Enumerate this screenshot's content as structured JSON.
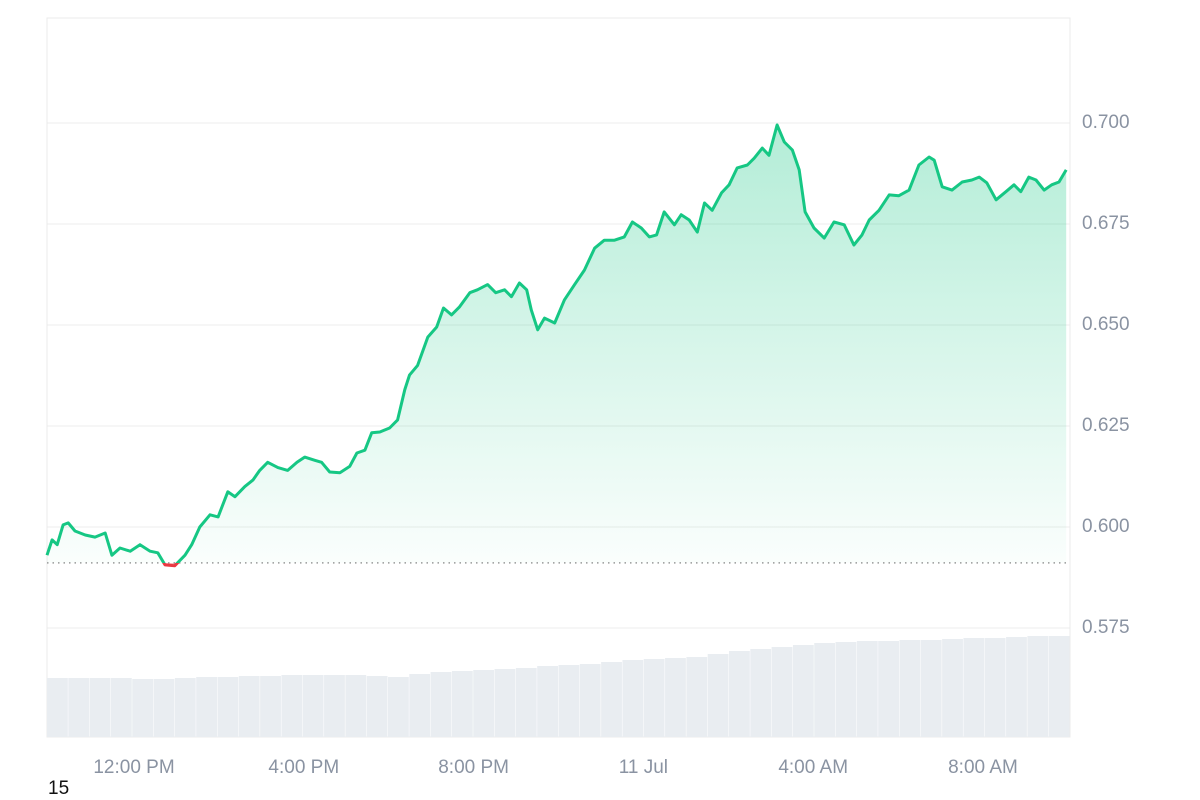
{
  "chart_data": {
    "type": "line",
    "x": [
      9.95,
      10.07,
      10.19,
      10.33,
      10.45,
      10.61,
      10.85,
      11.08,
      11.32,
      11.48,
      11.67,
      11.91,
      12.14,
      12.38,
      12.56,
      12.73,
      12.96,
      13.2,
      13.36,
      13.55,
      13.79,
      13.98,
      14.21,
      14.38,
      14.61,
      14.8,
      14.96,
      15.15,
      15.39,
      15.62,
      15.84,
      16.02,
      16.26,
      16.42,
      16.61,
      16.85,
      17.08,
      17.25,
      17.44,
      17.6,
      17.79,
      18.02,
      18.21,
      18.38,
      18.49,
      18.68,
      18.92,
      19.13,
      19.29,
      19.48,
      19.67,
      19.91,
      20.09,
      20.33,
      20.52,
      20.73,
      20.89,
      21.08,
      21.25,
      21.36,
      21.51,
      21.67,
      21.91,
      22.14,
      22.38,
      22.61,
      22.85,
      23.08,
      23.32,
      23.55,
      23.74,
      23.95,
      24.14,
      24.31,
      24.49,
      24.73,
      24.89,
      25.08,
      25.27,
      25.44,
      25.62,
      25.84,
      26.02,
      26.21,
      26.45,
      26.61,
      26.8,
      26.96,
      27.15,
      27.32,
      27.51,
      27.67,
      27.81,
      28.02,
      28.26,
      28.49,
      28.73,
      28.96,
      29.15,
      29.32,
      29.55,
      29.79,
      30.02,
      30.26,
      30.49,
      30.73,
      30.85,
      31.04,
      31.27,
      31.51,
      31.74,
      31.91,
      32.09,
      32.31,
      32.54,
      32.73,
      32.89,
      33.08,
      33.25,
      33.44,
      33.62,
      33.79,
      33.96
    ],
    "series": [
      {
        "color": "#16c784",
        "values": [
          0.593,
          0.5968,
          0.5956,
          0.6005,
          0.601,
          0.599,
          0.598,
          0.5975,
          0.5985,
          0.593,
          0.5948,
          0.594,
          0.5956,
          0.594,
          0.5936,
          0.5906,
          0.5904,
          0.593,
          0.5956,
          0.6,
          0.603,
          0.6025,
          0.6087,
          0.6075,
          0.61,
          0.6116,
          0.614,
          0.616,
          0.6147,
          0.614,
          0.616,
          0.6173,
          0.6165,
          0.616,
          0.6136,
          0.6134,
          0.615,
          0.6183,
          0.619,
          0.6233,
          0.6235,
          0.6245,
          0.6265,
          0.634,
          0.6376,
          0.64,
          0.647,
          0.6495,
          0.6542,
          0.6525,
          0.6545,
          0.658,
          0.6587,
          0.66,
          0.658,
          0.6587,
          0.657,
          0.6604,
          0.6587,
          0.6537,
          0.6488,
          0.6517,
          0.6505,
          0.6562,
          0.66,
          0.6636,
          0.669,
          0.671,
          0.671,
          0.6718,
          0.6755,
          0.674,
          0.6718,
          0.6723,
          0.678,
          0.6748,
          0.6773,
          0.676,
          0.673,
          0.6802,
          0.6784,
          0.6827,
          0.6847,
          0.6889,
          0.6896,
          0.6913,
          0.6938,
          0.692,
          0.6995,
          0.6953,
          0.6933,
          0.6884,
          0.678,
          0.674,
          0.6715,
          0.6755,
          0.6748,
          0.6698,
          0.6723,
          0.676,
          0.6784,
          0.6822,
          0.682,
          0.6834,
          0.6896,
          0.6916,
          0.6908,
          0.6842,
          0.6834,
          0.6854,
          0.6859,
          0.6866,
          0.6852,
          0.681,
          0.683,
          0.6847,
          0.683,
          0.6866,
          0.6859,
          0.6834,
          0.6847,
          0.6854,
          0.6884
        ]
      }
    ],
    "down_color": "#ea3943",
    "baseline": 0.5911,
    "xlim": [
      9.95,
      34.05
    ],
    "xticks": [
      {
        "value": 12,
        "label": "12:00 PM"
      },
      {
        "value": 16,
        "label": "4:00 PM"
      },
      {
        "value": 20,
        "label": "8:00 PM"
      },
      {
        "value": 24,
        "label": "11 Jul"
      },
      {
        "value": 28,
        "label": "4:00 AM"
      },
      {
        "value": 32,
        "label": "8:00 AM"
      }
    ],
    "ylim": [
      0.548,
      0.726
    ],
    "yticks": [
      0.575,
      {
        "value": 0.6,
        "label": "0.600"
      },
      0.625,
      {
        "value": 0.65,
        "label": "0.650"
      },
      0.675,
      {
        "value": 0.7,
        "label": "0.700"
      }
    ],
    "grid": true,
    "volume": {
      "color": "#e9edf1",
      "ylim": [
        0,
        719
      ],
      "values": [
        59,
        59,
        59,
        59,
        58,
        58,
        59,
        60,
        60,
        61,
        61,
        62,
        62,
        62,
        62,
        61,
        60,
        63,
        65,
        66,
        67,
        68,
        69,
        71,
        72,
        73,
        75,
        77,
        78,
        79,
        80,
        83,
        86,
        88,
        90,
        92,
        94,
        95,
        96,
        96,
        97,
        97,
        98,
        99,
        99,
        100,
        101,
        101
      ]
    },
    "footer": "15"
  }
}
